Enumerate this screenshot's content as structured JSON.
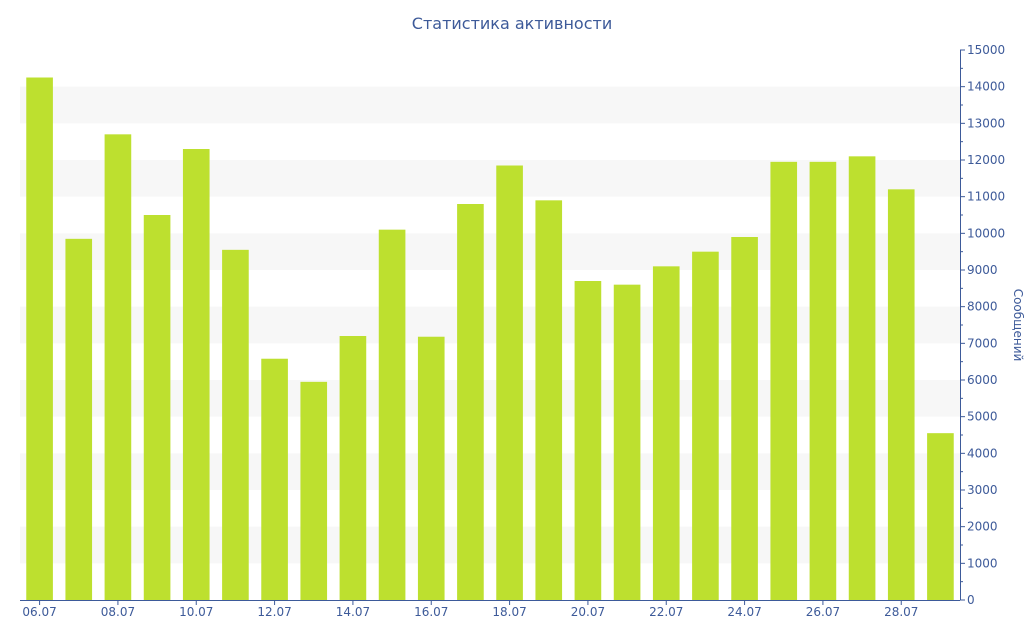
{
  "chart_data": {
    "type": "bar",
    "title": "Статистика активности",
    "xlabel": "",
    "ylabel": "Сообщений",
    "ylim": [
      0,
      15000
    ],
    "y_axis_position": "right",
    "y_ticks": [
      0,
      1000,
      2000,
      3000,
      4000,
      5000,
      6000,
      7000,
      8000,
      9000,
      10000,
      11000,
      12000,
      13000,
      14000,
      15000
    ],
    "x_tick_labels": [
      "06.07",
      "08.07",
      "10.07",
      "12.07",
      "14.07",
      "16.07",
      "18.07",
      "20.07",
      "22.07",
      "24.07",
      "26.07",
      "28.07"
    ],
    "categories": [
      "06.07",
      "07.07",
      "08.07",
      "09.07",
      "10.07",
      "11.07",
      "12.07",
      "13.07",
      "14.07",
      "15.07",
      "16.07",
      "17.07",
      "18.07",
      "19.07",
      "20.07",
      "21.07",
      "22.07",
      "23.07",
      "24.07",
      "25.07",
      "26.07",
      "27.07",
      "28.07",
      "29.07"
    ],
    "values": [
      14250,
      9850,
      12700,
      10500,
      12300,
      9550,
      6580,
      5950,
      7200,
      10100,
      7180,
      10800,
      11850,
      10900,
      8700,
      8600,
      9100,
      9500,
      9900,
      11950,
      11950,
      12100,
      11200,
      4550
    ],
    "grid": true,
    "legend": "none",
    "colors": {
      "bar": "#bde02f",
      "axis": "#3d5a99",
      "band": "#f7f7f7"
    }
  }
}
